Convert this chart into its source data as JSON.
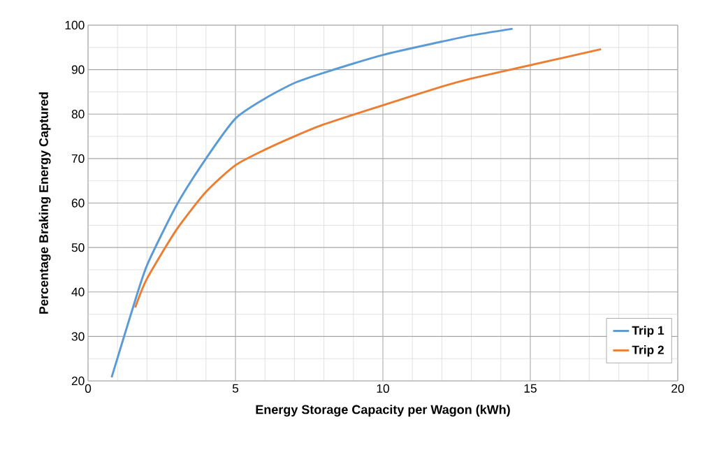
{
  "chart_data": {
    "type": "line",
    "xlabel": "Energy Storage Capacity per Wagon (kWh)",
    "ylabel": "Percentage Braking Energy Captured",
    "xlim": [
      0,
      20
    ],
    "ylim": [
      20,
      100
    ],
    "xticks": [
      0,
      5,
      10,
      15,
      20
    ],
    "yticks": [
      20,
      30,
      40,
      50,
      60,
      70,
      80,
      90,
      100
    ],
    "grid": true,
    "legend": "bottom right",
    "marker": "none",
    "line_style": "solid",
    "series": [
      {
        "name": "Trip 1",
        "color": "#5b9bd5",
        "x": [
          0.8,
          1.5,
          2,
          3,
          4,
          5,
          6,
          7,
          8,
          10,
          12,
          13,
          14.4
        ],
        "values": [
          20.8,
          36,
          46,
          59.5,
          70,
          79,
          83.5,
          87,
          89.3,
          93.3,
          96.3,
          97.7,
          99.2
        ]
      },
      {
        "name": "Trip 2",
        "color": "#ed7d31",
        "x": [
          1.6,
          2,
          3,
          4,
          5,
          6,
          7,
          8,
          10,
          12,
          13,
          15,
          17.4
        ],
        "values": [
          36.5,
          43,
          54,
          62.5,
          68.5,
          72,
          75,
          77.7,
          82,
          86.2,
          88,
          91,
          94.6
        ]
      }
    ]
  }
}
